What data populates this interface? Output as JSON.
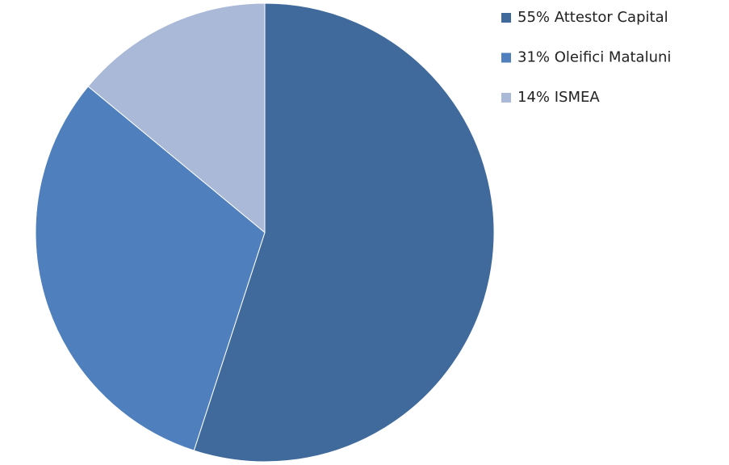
{
  "chart_data": {
    "type": "pie",
    "categories": [
      "55% Attestor Capital",
      "31% Oleifici Mataluni",
      "14% ISMEA"
    ],
    "values": [
      55,
      31,
      14
    ],
    "colors": [
      "#416a9c",
      "#4f80bd",
      "#aab9d8"
    ],
    "legend": "right"
  }
}
